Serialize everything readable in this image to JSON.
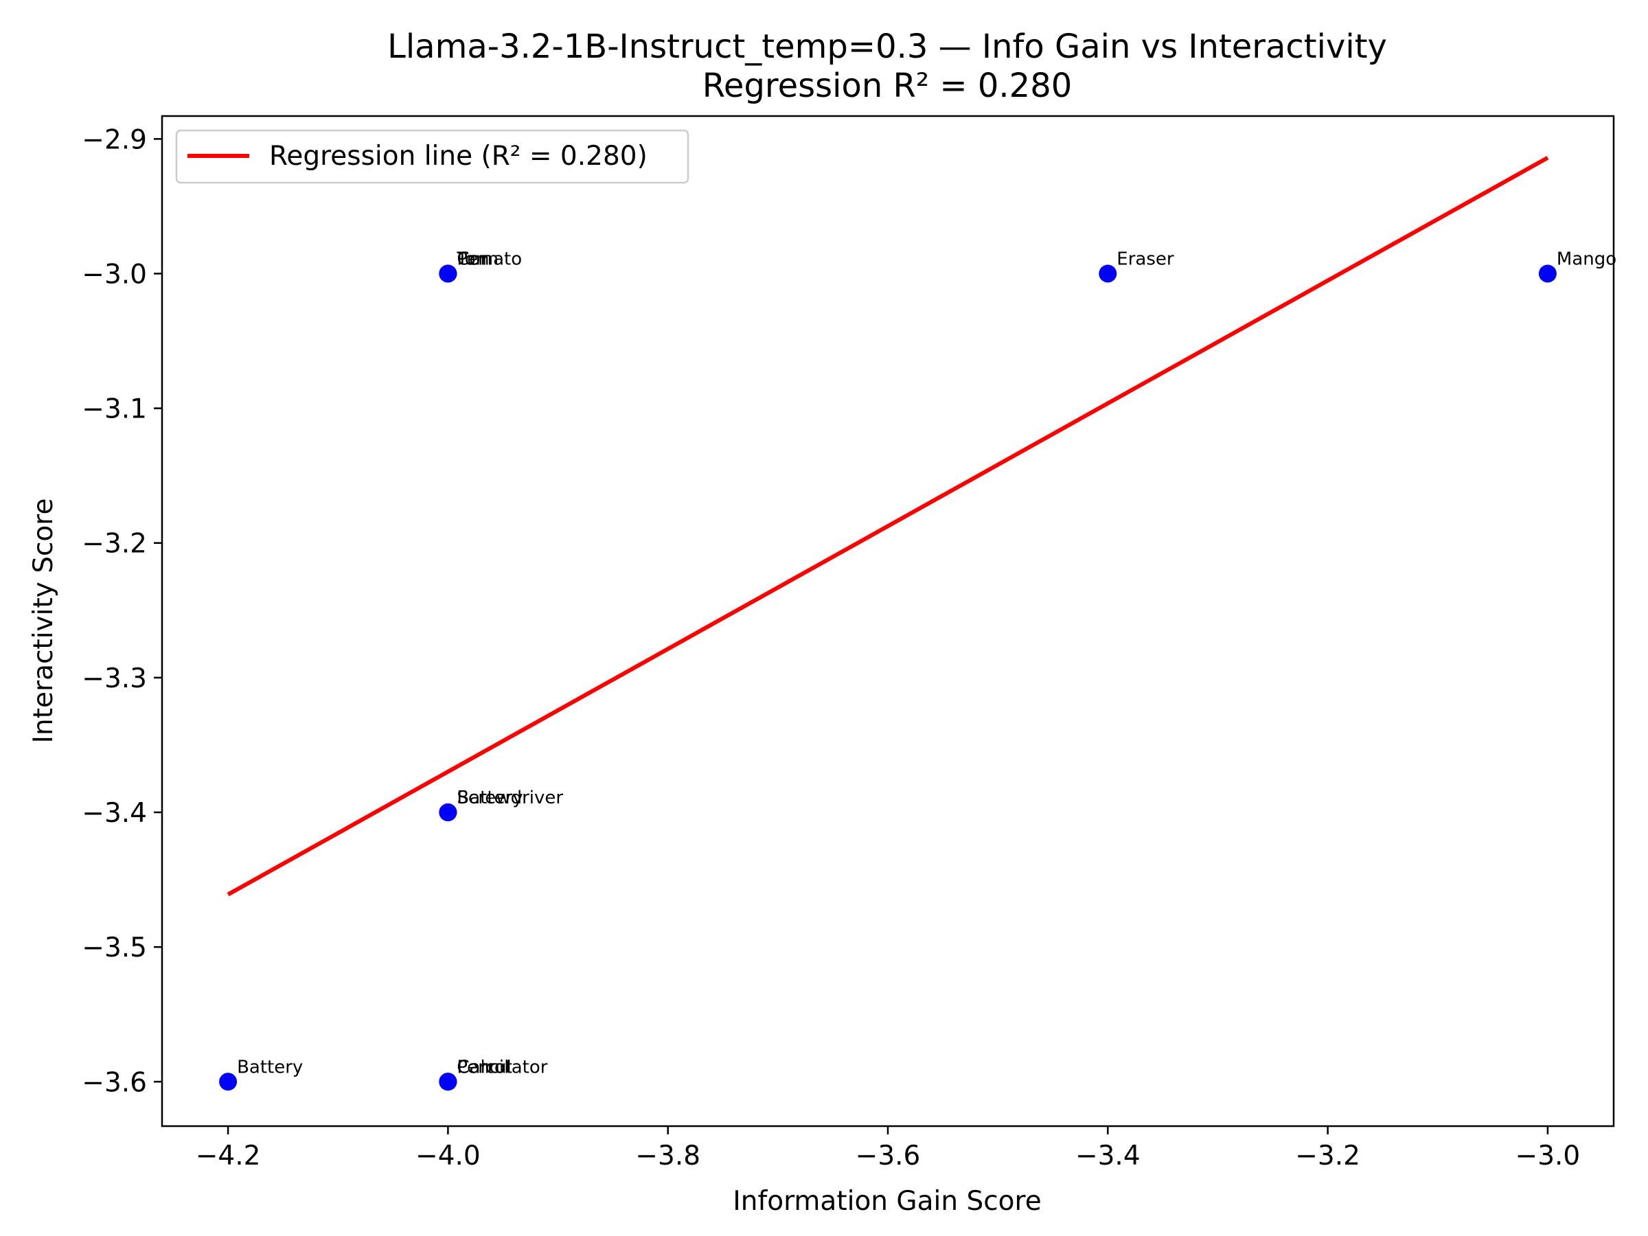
{
  "chart_data": {
    "type": "scatter",
    "title": "Llama-3.2-1B-Instruct_temp=0.3 — Info Gain vs Interactivity",
    "subtitle": "Regression R² = 0.280",
    "xlabel": "Information Gain Score",
    "ylabel": "Interactivity Score",
    "xlim": [
      -4.26,
      -2.94
    ],
    "ylim": [
      -3.633,
      -2.883
    ],
    "xticks": [
      -4.2,
      -4.0,
      -3.8,
      -3.6,
      -3.4,
      -3.2,
      -3.0
    ],
    "xtick_labels": [
      "−4.2",
      "−4.0",
      "−3.8",
      "−3.6",
      "−3.4",
      "−3.2",
      "−3.0"
    ],
    "yticks": [
      -2.9,
      -3.0,
      -3.1,
      -3.2,
      -3.3,
      -3.4,
      -3.5,
      -3.6
    ],
    "ytick_labels": [
      "−2.9",
      "−3.0",
      "−3.1",
      "−3.2",
      "−3.3",
      "−3.4",
      "−3.5",
      "−3.6"
    ],
    "points": [
      {
        "label": "Tomato",
        "x": -4.0,
        "y": -3.0
      },
      {
        "label": "Pen",
        "x": -4.0,
        "y": -3.0
      },
      {
        "label": "Corn",
        "x": -4.0,
        "y": -3.0
      },
      {
        "label": "Eraser",
        "x": -3.4,
        "y": -3.0
      },
      {
        "label": "Mango",
        "x": -3.0,
        "y": -3.0
      },
      {
        "label": "Screwdriver",
        "x": -4.0,
        "y": -3.4
      },
      {
        "label": "Battery",
        "x": -4.0,
        "y": -3.4
      },
      {
        "label": "Battery",
        "x": -4.2,
        "y": -3.6
      },
      {
        "label": "Calculator",
        "x": -4.0,
        "y": -3.6
      },
      {
        "label": "Pencil",
        "x": -4.0,
        "y": -3.6
      },
      {
        "label": "Carrot",
        "x": -4.0,
        "y": -3.6
      }
    ],
    "regression": {
      "x": [
        -4.2,
        -3.0
      ],
      "y": [
        -3.461,
        -2.914
      ],
      "r2": 0.28
    },
    "legend": {
      "label": "Regression line (R² = 0.280)",
      "position": "upper-left"
    },
    "grid": false,
    "colors": {
      "points": "#0000ff",
      "regression": "#ff0000"
    }
  }
}
